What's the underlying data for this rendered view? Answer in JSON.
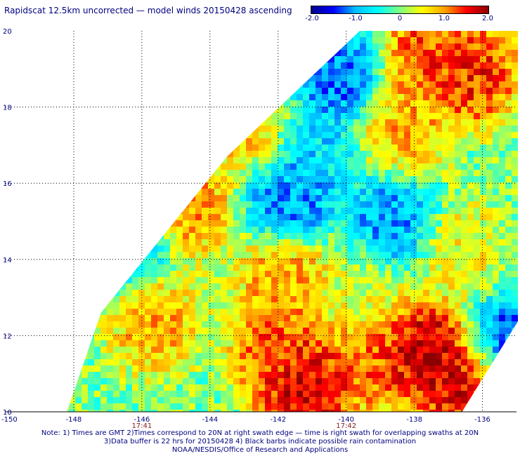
{
  "title": "Rapidscat 12.5km uncorrected — model winds 20150428 ascending",
  "colorbar": {
    "labels": [
      "-2.0",
      "-1.0",
      "0",
      "1.0",
      "2.0"
    ],
    "values": [
      -2.0,
      -1.0,
      0,
      1.0,
      2.0
    ],
    "range": [
      -2.0,
      2.0
    ],
    "colors": [
      "#00008b",
      "#0000ff",
      "#00bfff",
      "#00ffff",
      "#7fff7f",
      "#ffff00",
      "#ffa500",
      "#ff0000",
      "#8b0000"
    ]
  },
  "chart_data": {
    "type": "heatmap",
    "title": "Rapidscat 12.5km uncorrected — model winds 20150428 ascending",
    "xlim": [
      -150,
      -135
    ],
    "ylim": [
      10,
      20
    ],
    "x_ticks": [
      -150,
      -148,
      -146,
      -144,
      -142,
      -140,
      -138,
      -136
    ],
    "x_tick_labels": [
      "-150",
      "-148",
      "-146",
      "-144",
      "-142",
      "-140",
      "-138",
      "-136"
    ],
    "y_ticks": [
      10,
      12,
      14,
      16,
      18,
      20
    ],
    "y_tick_labels": [
      "10",
      "12",
      "14",
      "16",
      "18",
      "20"
    ],
    "grid": true,
    "time_labels": [
      {
        "x": -146,
        "text": "17:41"
      },
      {
        "x": -140,
        "text": "17:42"
      }
    ],
    "swath": {
      "corners_lon_lat": [
        [
          -148.2,
          10.0
        ],
        [
          -136.6,
          10.0
        ],
        [
          -134.8,
          12.6
        ],
        [
          -134.8,
          20.0
        ],
        [
          -139.6,
          20.0
        ],
        [
          -143.5,
          16.7
        ],
        [
          -147.2,
          12.6
        ]
      ]
    },
    "regions": [
      {
        "lon": -141.2,
        "lat": 10.6,
        "value": 2.0
      },
      {
        "lon": -137.8,
        "lat": 11.6,
        "value": 2.0
      },
      {
        "lon": -136.6,
        "lat": 10.8,
        "value": 1.9
      },
      {
        "lon": -142.0,
        "lat": 11.6,
        "value": 1.4
      },
      {
        "lon": -139.3,
        "lat": 11.4,
        "value": 1.3
      },
      {
        "lon": -141.8,
        "lat": 13.5,
        "value": 1.1
      },
      {
        "lon": -145.6,
        "lat": 12.4,
        "value": 1.0
      },
      {
        "lon": -136.3,
        "lat": 18.9,
        "value": 1.6
      },
      {
        "lon": -137.6,
        "lat": 19.4,
        "value": 1.4
      },
      {
        "lon": -138.3,
        "lat": 17.4,
        "value": 1.0
      },
      {
        "lon": -144.6,
        "lat": 15.4,
        "value": 1.1
      },
      {
        "lon": -142.8,
        "lat": 17.4,
        "value": 0.9
      },
      {
        "lon": -141.7,
        "lat": 15.6,
        "value": -1.3
      },
      {
        "lon": -140.3,
        "lat": 18.8,
        "value": -1.4
      },
      {
        "lon": -138.6,
        "lat": 15.0,
        "value": -1.2
      },
      {
        "lon": -146.4,
        "lat": 14.4,
        "value": -0.9
      },
      {
        "lon": -135.2,
        "lat": 11.8,
        "value": -1.5
      },
      {
        "lon": -141.0,
        "lat": 16.8,
        "value": -0.8
      },
      {
        "lon": -136.7,
        "lat": 14.2,
        "value": 0.6
      },
      {
        "lon": -139.5,
        "lat": 13.0,
        "value": 0.4
      }
    ]
  },
  "notes": [
    "Note: 1) Times are GMT 2)Times correspond to 20N at right swath edge — time is right swath for overlapping swaths at 20N",
    "3)Data buffer is 22 hrs for 20150428 4) Black barbs indicate possible rain contamination",
    "NOAA/NESDIS/Office of Research and Applications"
  ]
}
